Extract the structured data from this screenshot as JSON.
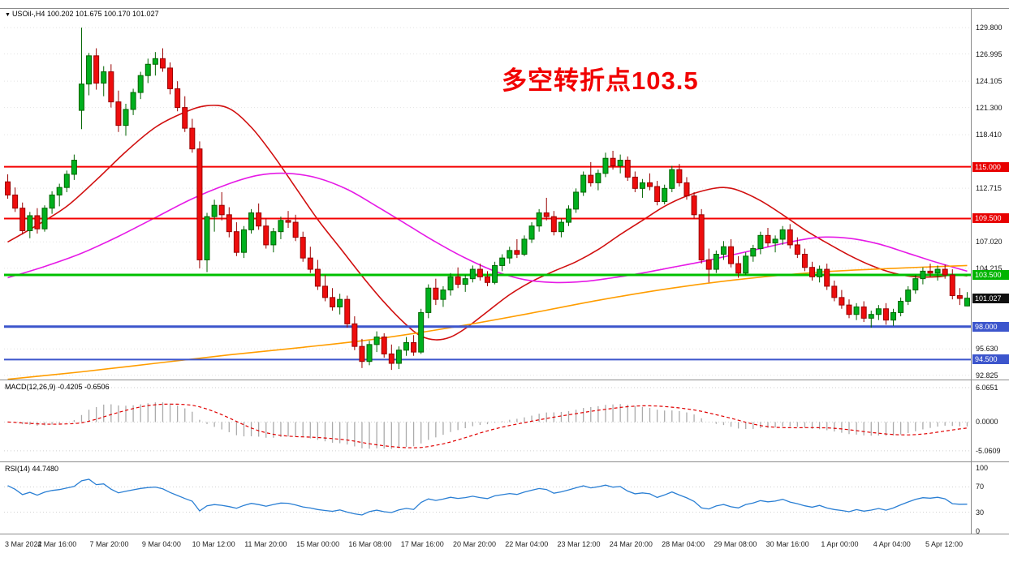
{
  "chart_data": {
    "type": "candlestick",
    "symbol": "USOil-",
    "timeframe": "H4",
    "symbol_header": "USOil-,H4 100.202 101.675 100.170 101.027",
    "ohlc_display": {
      "open": "100.202",
      "high": "101.675",
      "low": "100.170",
      "close": "101.027"
    },
    "annotation": {
      "text": "多空转折点103.5",
      "color": "#f10000"
    },
    "price_axis": {
      "min": 92.55,
      "max": 131.7,
      "grid_labels": [
        {
          "value": 129.8,
          "label": "129.800"
        },
        {
          "value": 126.995,
          "label": "126.995"
        },
        {
          "value": 124.105,
          "label": "124.105"
        },
        {
          "value": 121.3,
          "label": "121.300"
        },
        {
          "value": 118.41,
          "label": "118.410"
        },
        {
          "value": 112.715,
          "label": "112.715"
        },
        {
          "value": 107.02,
          "label": "107.020"
        },
        {
          "value": 104.215,
          "label": "104.215"
        },
        {
          "value": 95.63,
          "label": "95.630"
        },
        {
          "value": 92.825,
          "label": "92.825"
        }
      ]
    },
    "hlines": [
      {
        "price": 115.0,
        "color": "#f40000",
        "width": 2,
        "label": "115.000",
        "label_bg": "#e80000"
      },
      {
        "price": 109.5,
        "color": "#f40000",
        "width": 2,
        "label": "109.500",
        "label_bg": "#e80000"
      },
      {
        "price": 103.5,
        "color": "#00c000",
        "width": 3,
        "label": "103.500",
        "label_bg": "#00b400"
      },
      {
        "price": 98.0,
        "color": "#3c55cc",
        "width": 3,
        "label": "98.000",
        "label_bg": "#3c55cc"
      },
      {
        "price": 94.5,
        "color": "#3c55cc",
        "width": 2,
        "label": "94.500",
        "label_bg": "#3c55cc"
      }
    ],
    "current_price": {
      "value": 101.027,
      "label": "101.027",
      "label_bg": "#101010"
    },
    "colors": {
      "up": "#00b01e",
      "up_border": "#006400",
      "down": "#ee0d0d",
      "down_border": "#990000",
      "grid": "#e3e3e3",
      "macd_hist": "#ababab",
      "macd_signal": "#e00000",
      "rsi_line": "#2a7fd4",
      "axis_text": "#141414"
    },
    "candles": [
      [
        113.4,
        114.2,
        111.6,
        112.0
      ],
      [
        112.0,
        112.8,
        110.2,
        110.6
      ],
      [
        110.6,
        111.2,
        107.8,
        108.2
      ],
      [
        108.2,
        110.2,
        107.4,
        109.8
      ],
      [
        109.8,
        110.6,
        107.9,
        108.4
      ],
      [
        108.4,
        110.9,
        108.1,
        110.6
      ],
      [
        110.6,
        112.4,
        110.0,
        112.0
      ],
      [
        112.0,
        113.2,
        110.8,
        112.8
      ],
      [
        112.8,
        114.6,
        112.3,
        114.2
      ],
      [
        114.2,
        116.3,
        113.6,
        115.7
      ],
      [
        121.0,
        129.8,
        119.0,
        123.8
      ],
      [
        123.8,
        127.1,
        122.6,
        126.8
      ],
      [
        126.8,
        127.6,
        123.2,
        123.9
      ],
      [
        123.9,
        125.7,
        122.5,
        125.1
      ],
      [
        125.1,
        125.9,
        121.3,
        121.9
      ],
      [
        121.9,
        123.1,
        118.7,
        119.4
      ],
      [
        119.4,
        121.7,
        118.3,
        121.1
      ],
      [
        121.1,
        123.3,
        120.5,
        122.9
      ],
      [
        122.9,
        125.1,
        122.2,
        124.7
      ],
      [
        124.7,
        126.5,
        123.9,
        125.9
      ],
      [
        125.9,
        127.2,
        124.7,
        126.5
      ],
      [
        126.5,
        127.6,
        125.1,
        125.5
      ],
      [
        125.5,
        126.1,
        122.7,
        123.3
      ],
      [
        123.3,
        124.1,
        120.9,
        121.3
      ],
      [
        121.3,
        122.5,
        118.7,
        119.1
      ],
      [
        119.1,
        120.1,
        116.5,
        116.9
      ],
      [
        116.9,
        117.7,
        104.2,
        105.1
      ],
      [
        105.1,
        110.1,
        103.8,
        109.7
      ],
      [
        109.7,
        111.5,
        108.1,
        110.9
      ],
      [
        110.9,
        112.3,
        109.3,
        109.9
      ],
      [
        109.9,
        110.7,
        107.5,
        108.1
      ],
      [
        108.1,
        109.1,
        105.5,
        105.9
      ],
      [
        105.9,
        108.7,
        105.3,
        108.3
      ],
      [
        108.3,
        110.5,
        107.9,
        110.1
      ],
      [
        110.1,
        111.1,
        108.3,
        108.7
      ],
      [
        108.7,
        109.5,
        106.3,
        106.7
      ],
      [
        106.7,
        108.5,
        105.9,
        108.1
      ],
      [
        108.1,
        109.7,
        107.3,
        109.3
      ],
      [
        109.3,
        110.3,
        108.5,
        109.1
      ],
      [
        109.1,
        109.9,
        107.1,
        107.5
      ],
      [
        107.5,
        108.1,
        104.9,
        105.3
      ],
      [
        105.3,
        106.5,
        103.7,
        104.1
      ],
      [
        104.1,
        105.1,
        101.9,
        102.3
      ],
      [
        102.3,
        103.5,
        100.7,
        101.1
      ],
      [
        101.1,
        102.1,
        99.7,
        100.1
      ],
      [
        100.1,
        101.5,
        99.3,
        100.9
      ],
      [
        100.9,
        101.3,
        97.9,
        98.3
      ],
      [
        98.3,
        99.1,
        95.5,
        95.9
      ],
      [
        95.9,
        96.7,
        93.6,
        94.3
      ],
      [
        94.3,
        96.5,
        93.9,
        96.1
      ],
      [
        96.1,
        97.5,
        95.3,
        96.9
      ],
      [
        96.9,
        97.3,
        94.7,
        95.1
      ],
      [
        95.1,
        96.1,
        93.4,
        94.1
      ],
      [
        94.1,
        95.9,
        93.5,
        95.5
      ],
      [
        95.5,
        96.9,
        94.9,
        96.3
      ],
      [
        96.3,
        97.1,
        94.9,
        95.3
      ],
      [
        95.3,
        99.9,
        95.1,
        99.5
      ],
      [
        99.5,
        102.5,
        98.9,
        102.1
      ],
      [
        102.1,
        103.1,
        100.3,
        100.9
      ],
      [
        100.9,
        102.3,
        100.1,
        101.9
      ],
      [
        101.9,
        103.7,
        101.3,
        103.3
      ],
      [
        103.3,
        104.3,
        102.1,
        102.5
      ],
      [
        102.5,
        103.5,
        101.7,
        103.1
      ],
      [
        103.1,
        104.5,
        102.7,
        104.1
      ],
      [
        104.1,
        104.7,
        102.9,
        103.3
      ],
      [
        103.3,
        103.9,
        102.3,
        102.7
      ],
      [
        102.7,
        104.9,
        102.5,
        104.5
      ],
      [
        104.5,
        105.7,
        103.9,
        105.3
      ],
      [
        105.3,
        106.5,
        104.7,
        106.1
      ],
      [
        106.1,
        107.3,
        105.3,
        105.7
      ],
      [
        105.7,
        107.7,
        105.5,
        107.3
      ],
      [
        107.3,
        109.1,
        106.9,
        108.7
      ],
      [
        108.7,
        110.5,
        108.1,
        110.1
      ],
      [
        110.1,
        111.7,
        109.3,
        109.7
      ],
      [
        109.7,
        110.3,
        107.7,
        108.1
      ],
      [
        108.1,
        109.5,
        107.5,
        109.1
      ],
      [
        109.1,
        110.9,
        108.7,
        110.5
      ],
      [
        110.5,
        112.7,
        110.1,
        112.3
      ],
      [
        112.3,
        114.5,
        111.9,
        114.1
      ],
      [
        114.1,
        115.5,
        112.9,
        113.3
      ],
      [
        113.3,
        114.7,
        112.5,
        114.3
      ],
      [
        114.3,
        116.5,
        113.9,
        115.9
      ],
      [
        115.9,
        116.7,
        114.7,
        115.1
      ],
      [
        115.1,
        116.3,
        114.3,
        115.7
      ],
      [
        115.7,
        116.1,
        113.5,
        113.9
      ],
      [
        113.9,
        114.5,
        112.3,
        112.7
      ],
      [
        112.7,
        113.7,
        111.7,
        113.3
      ],
      [
        113.3,
        114.3,
        112.5,
        112.9
      ],
      [
        112.9,
        113.5,
        110.9,
        111.3
      ],
      [
        111.3,
        113.1,
        111.0,
        112.7
      ],
      [
        112.7,
        115.1,
        112.3,
        114.7
      ],
      [
        114.7,
        115.3,
        112.9,
        113.3
      ],
      [
        113.3,
        113.9,
        111.5,
        111.9
      ],
      [
        111.9,
        112.3,
        109.5,
        109.9
      ],
      [
        109.9,
        110.5,
        104.7,
        105.1
      ],
      [
        105.1,
        106.3,
        102.7,
        104.1
      ],
      [
        104.1,
        106.1,
        103.7,
        105.7
      ],
      [
        105.7,
        107.1,
        105.1,
        106.5
      ],
      [
        106.5,
        107.3,
        104.3,
        104.7
      ],
      [
        104.7,
        105.5,
        103.2,
        103.7
      ],
      [
        103.7,
        105.9,
        103.5,
        105.5
      ],
      [
        105.5,
        106.7,
        104.9,
        106.3
      ],
      [
        106.3,
        108.1,
        105.7,
        107.7
      ],
      [
        107.7,
        108.5,
        106.5,
        106.9
      ],
      [
        106.9,
        107.7,
        105.9,
        107.3
      ],
      [
        107.3,
        108.7,
        106.7,
        108.3
      ],
      [
        108.3,
        108.9,
        106.3,
        106.7
      ],
      [
        106.7,
        107.5,
        105.3,
        105.7
      ],
      [
        105.7,
        106.3,
        103.9,
        104.3
      ],
      [
        104.3,
        104.9,
        102.9,
        103.3
      ],
      [
        103.3,
        104.5,
        102.7,
        104.1
      ],
      [
        104.1,
        104.7,
        101.9,
        102.3
      ],
      [
        102.3,
        102.9,
        100.7,
        101.1
      ],
      [
        101.1,
        101.9,
        99.9,
        100.3
      ],
      [
        100.3,
        100.9,
        98.9,
        99.3
      ],
      [
        99.3,
        100.5,
        98.7,
        100.1
      ],
      [
        100.1,
        100.7,
        98.5,
        98.9
      ],
      [
        98.9,
        99.7,
        97.9,
        99.3
      ],
      [
        99.3,
        100.3,
        98.7,
        99.9
      ],
      [
        99.9,
        100.5,
        98.2,
        98.7
      ],
      [
        98.7,
        99.9,
        98.1,
        99.5
      ],
      [
        99.5,
        101.1,
        99.1,
        100.7
      ],
      [
        100.7,
        102.3,
        100.3,
        101.9
      ],
      [
        101.9,
        103.5,
        101.5,
        103.1
      ],
      [
        103.1,
        104.3,
        102.5,
        103.9
      ],
      [
        103.9,
        104.7,
        103.3,
        103.7
      ],
      [
        103.7,
        104.5,
        102.9,
        104.1
      ],
      [
        104.1,
        104.6,
        103.1,
        103.5
      ],
      [
        103.5,
        104.1,
        100.9,
        101.3
      ],
      [
        101.3,
        102.1,
        100.3,
        101.0
      ],
      [
        100.202,
        101.675,
        100.17,
        101.027
      ]
    ],
    "ma_lines": [
      {
        "name": "ma-red",
        "color": "#d10f0f",
        "width": 1.6,
        "points": [
          [
            0,
            107.0
          ],
          [
            4,
            108.8
          ],
          [
            8,
            110.8
          ],
          [
            12,
            113.6
          ],
          [
            16,
            116.6
          ],
          [
            20,
            119.2
          ],
          [
            24,
            120.8
          ],
          [
            27,
            121.5
          ],
          [
            30,
            121.2
          ],
          [
            33,
            119.2
          ],
          [
            36,
            116.2
          ],
          [
            39,
            112.8
          ],
          [
            42,
            109.4
          ],
          [
            45,
            106.4
          ],
          [
            48,
            103.4
          ],
          [
            51,
            100.6
          ],
          [
            54,
            98.2
          ],
          [
            56,
            97.0
          ],
          [
            58,
            96.6
          ],
          [
            60,
            96.9
          ],
          [
            62,
            97.8
          ],
          [
            65,
            99.6
          ],
          [
            68,
            101.4
          ],
          [
            71,
            102.8
          ],
          [
            74,
            103.9
          ],
          [
            77,
            104.9
          ],
          [
            80,
            106.2
          ],
          [
            83,
            107.8
          ],
          [
            86,
            109.3
          ],
          [
            89,
            110.8
          ],
          [
            92,
            111.9
          ],
          [
            95,
            112.6
          ],
          [
            97,
            112.8
          ],
          [
            99,
            112.5
          ],
          [
            102,
            111.4
          ],
          [
            105,
            109.9
          ],
          [
            108,
            108.3
          ],
          [
            111,
            106.9
          ],
          [
            114,
            105.6
          ],
          [
            117,
            104.5
          ],
          [
            120,
            103.7
          ],
          [
            123,
            103.3
          ],
          [
            126,
            103.3
          ],
          [
            128,
            103.5
          ],
          [
            130,
            103.4
          ]
        ]
      },
      {
        "name": "ma-magenta",
        "color": "#e61ae6",
        "width": 1.6,
        "points": [
          [
            0,
            103.2
          ],
          [
            5,
            104.4
          ],
          [
            10,
            105.8
          ],
          [
            15,
            107.6
          ],
          [
            20,
            109.6
          ],
          [
            25,
            111.6
          ],
          [
            30,
            113.2
          ],
          [
            34,
            114.1
          ],
          [
            38,
            114.3
          ],
          [
            42,
            113.8
          ],
          [
            46,
            112.6
          ],
          [
            50,
            110.8
          ],
          [
            54,
            108.9
          ],
          [
            58,
            107.0
          ],
          [
            62,
            105.3
          ],
          [
            66,
            103.9
          ],
          [
            70,
            103.0
          ],
          [
            74,
            102.7
          ],
          [
            78,
            102.8
          ],
          [
            82,
            103.2
          ],
          [
            86,
            103.7
          ],
          [
            90,
            104.3
          ],
          [
            94,
            104.9
          ],
          [
            98,
            105.6
          ],
          [
            102,
            106.3
          ],
          [
            106,
            107.0
          ],
          [
            110,
            107.5
          ],
          [
            114,
            107.4
          ],
          [
            118,
            106.8
          ],
          [
            122,
            105.8
          ],
          [
            126,
            104.8
          ],
          [
            130,
            103.9
          ]
        ]
      },
      {
        "name": "ma-orange",
        "color": "#ff9d00",
        "width": 1.6,
        "points": [
          [
            0,
            92.4
          ],
          [
            10,
            93.2
          ],
          [
            20,
            94.1
          ],
          [
            30,
            95.0
          ],
          [
            40,
            95.8
          ],
          [
            50,
            96.7
          ],
          [
            60,
            97.9
          ],
          [
            70,
            99.3
          ],
          [
            80,
            100.8
          ],
          [
            90,
            102.1
          ],
          [
            100,
            103.1
          ],
          [
            110,
            103.8
          ],
          [
            120,
            104.2
          ],
          [
            130,
            104.5
          ]
        ]
      }
    ],
    "indicators": {
      "macd": {
        "label": "MACD(12,26,9) -0.4205 -0.6506",
        "params": [
          12,
          26,
          9
        ],
        "main_value": -0.4205,
        "signal_value": -0.6506,
        "axis": [
          {
            "value": 6.0651,
            "label": "6.0651"
          },
          {
            "value": 0,
            "label": "0.0000"
          },
          {
            "value": -5.0609,
            "label": "-5.0609"
          }
        ]
      },
      "rsi": {
        "label": "RSI(14) 44.7480",
        "period": 14,
        "value": 44.748,
        "levels": [
          {
            "value": 100,
            "label": "100"
          },
          {
            "value": 70,
            "label": "70"
          },
          {
            "value": 30,
            "label": "30"
          },
          {
            "value": 0,
            "label": "0"
          }
        ]
      }
    },
    "x_labels": [
      "3 Mar 2022",
      "4 Mar 16:00",
      "7 Mar 20:00",
      "9 Mar 04:00",
      "10 Mar 12:00",
      "11 Mar 20:00",
      "15 Mar 00:00",
      "16 Mar 08:00",
      "17 Mar 16:00",
      "20 Mar 20:00",
      "22 Mar 04:00",
      "23 Mar 12:00",
      "24 Mar 20:00",
      "28 Mar 04:00",
      "29 Mar 08:00",
      "30 Mar 16:00",
      "1 Apr 00:00",
      "4 Apr 04:00",
      "5 Apr 12:00"
    ]
  }
}
